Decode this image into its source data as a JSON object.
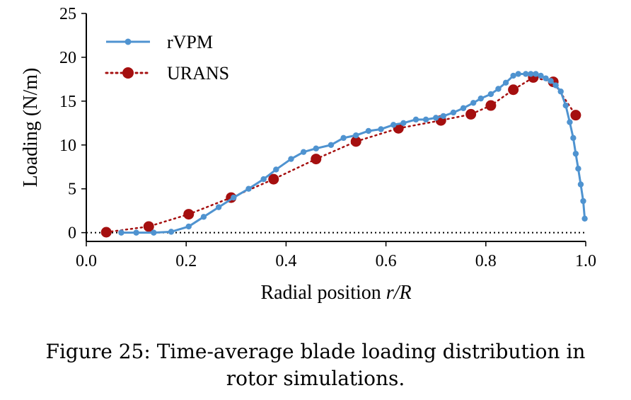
{
  "caption": {
    "line1": "Figure 25: Time-average blade loading distribution in",
    "line2": "rotor simulations."
  },
  "colors": {
    "rvpm": "#4f93d0",
    "urans": "#a50f0f",
    "axis": "#000000"
  },
  "chart_data": {
    "type": "line",
    "xlabel_plain": "Radial position ",
    "xlabel_italic": "r/R",
    "ylabel": "Loading (N/m)",
    "xlim": [
      0.0,
      1.0
    ],
    "ylim": [
      -1,
      25
    ],
    "xticks": [
      "0.0",
      "0.2",
      "0.4",
      "0.6",
      "0.8",
      "1.0"
    ],
    "yticks": [
      "0",
      "5",
      "10",
      "15",
      "20",
      "25"
    ],
    "reference_line": {
      "y": 0,
      "style": "dotted"
    },
    "legend_position": "top-left",
    "series": [
      {
        "name": "rVPM",
        "style": "solid line with small circle markers",
        "x": [
          0.07,
          0.1,
          0.135,
          0.17,
          0.205,
          0.235,
          0.265,
          0.295,
          0.325,
          0.355,
          0.38,
          0.41,
          0.435,
          0.46,
          0.49,
          0.515,
          0.54,
          0.565,
          0.59,
          0.615,
          0.635,
          0.66,
          0.68,
          0.7,
          0.715,
          0.735,
          0.755,
          0.775,
          0.79,
          0.81,
          0.825,
          0.84,
          0.855,
          0.865,
          0.88,
          0.89,
          0.9,
          0.91,
          0.92,
          0.93,
          0.94,
          0.95,
          0.96,
          0.968,
          0.975,
          0.98,
          0.985,
          0.99,
          0.995,
          0.998
        ],
        "y": [
          0.0,
          0.0,
          0.0,
          0.1,
          0.7,
          1.8,
          2.9,
          4.0,
          5.0,
          6.1,
          7.2,
          8.4,
          9.2,
          9.6,
          10.0,
          10.8,
          11.1,
          11.6,
          11.8,
          12.3,
          12.5,
          12.9,
          12.9,
          13.1,
          13.3,
          13.7,
          14.2,
          14.8,
          15.3,
          15.8,
          16.4,
          17.1,
          17.9,
          18.1,
          18.1,
          18.1,
          18.1,
          17.9,
          17.6,
          17.3,
          16.8,
          16.1,
          14.5,
          12.6,
          10.8,
          9.0,
          7.3,
          5.5,
          3.6,
          1.6
        ]
      },
      {
        "name": "URANS",
        "style": "dotted line with large circle markers",
        "x": [
          0.04,
          0.125,
          0.205,
          0.29,
          0.375,
          0.46,
          0.54,
          0.625,
          0.71,
          0.77,
          0.81,
          0.855,
          0.895,
          0.935,
          0.98
        ],
        "y": [
          0.05,
          0.7,
          2.1,
          4.0,
          6.1,
          8.4,
          10.4,
          11.9,
          12.8,
          13.5,
          14.5,
          16.3,
          17.7,
          17.2,
          13.4
        ]
      }
    ]
  }
}
